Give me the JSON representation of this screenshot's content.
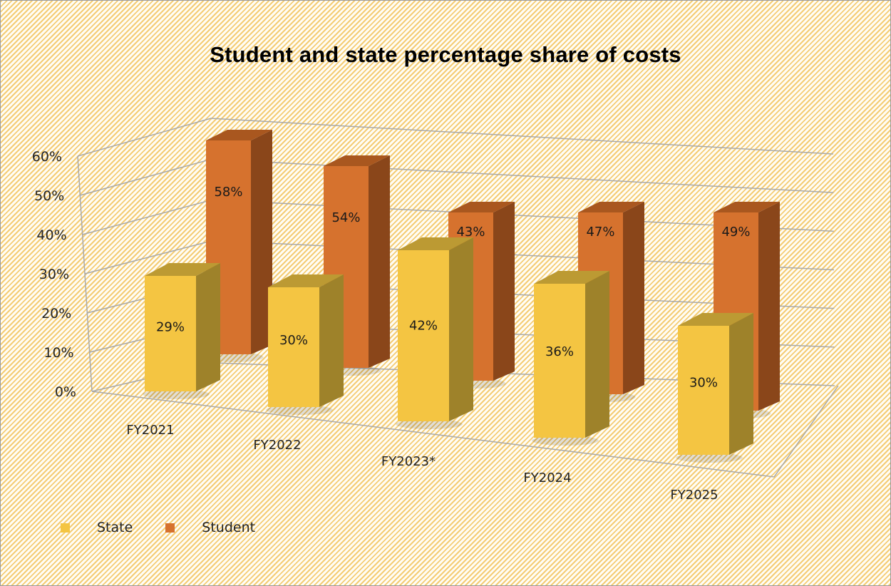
{
  "chart_data": {
    "type": "bar",
    "subtype": "3d-clustered-column",
    "title": "Student and state percentage share of costs",
    "xlabel": "",
    "ylabel": "",
    "ylim": [
      0,
      0.6
    ],
    "yticks": [
      "0%",
      "10%",
      "20%",
      "30%",
      "40%",
      "50%",
      "60%"
    ],
    "grid": true,
    "legend_position": "bottom-left",
    "categories": [
      "FY2021",
      "FY2022",
      "FY2023*",
      "FY2024",
      "FY2025"
    ],
    "series": [
      {
        "name": "State",
        "values": [
          0.29,
          0.3,
          0.42,
          0.36,
          0.3
        ],
        "labels": [
          "29%",
          "30%",
          "42%",
          "36%",
          "30%"
        ],
        "color_front": "#F4C542",
        "color_side": "#9E822A",
        "color_top": "#BC9A33"
      },
      {
        "name": "Student",
        "values": [
          0.58,
          0.54,
          0.43,
          0.47,
          0.49
        ],
        "labels": [
          "58%",
          "54%",
          "43%",
          "47%",
          "49%"
        ],
        "color_front": "#D6722E",
        "color_side": "#8A461A",
        "color_top": "#A9571F"
      }
    ]
  },
  "legend": {
    "items": [
      {
        "label": "State",
        "color": "#F4C542"
      },
      {
        "label": "Student",
        "color": "#D6722E"
      }
    ]
  }
}
